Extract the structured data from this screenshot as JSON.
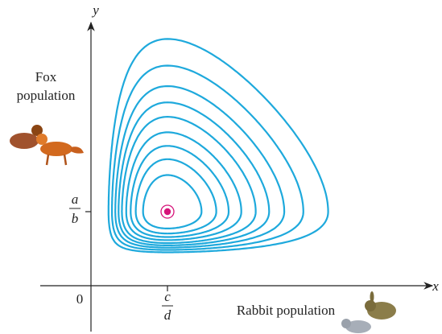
{
  "axes": {
    "y_label": "y",
    "x_label": "x",
    "origin": "0"
  },
  "y_tick": {
    "numerator": "a",
    "denominator": "b"
  },
  "x_tick": {
    "numerator": "c",
    "denominator": "d"
  },
  "labels": {
    "fox": [
      "Fox",
      "population"
    ],
    "rabbit": "Rabbit population"
  }
}
